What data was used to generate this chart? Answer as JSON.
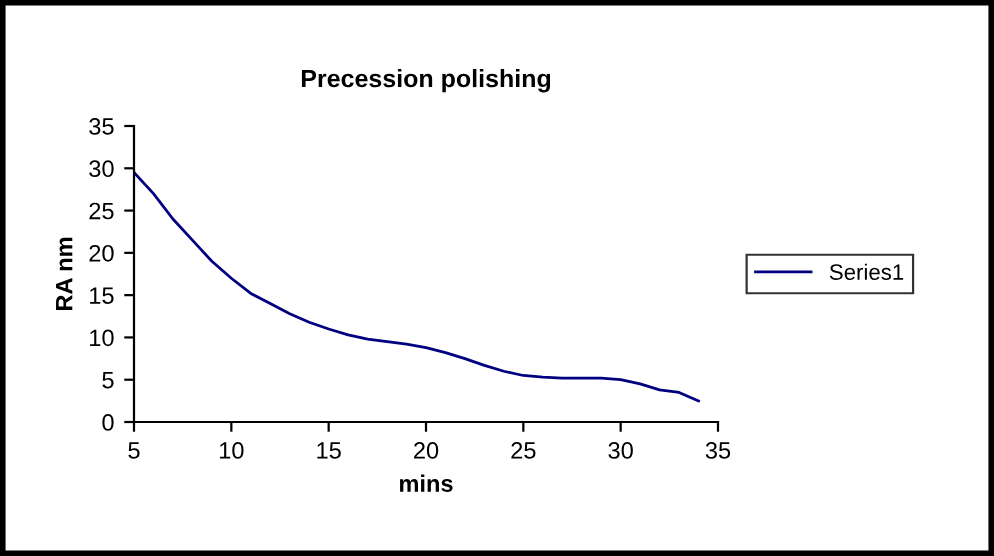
{
  "chart_data": {
    "type": "line",
    "title": "Precession polishing",
    "xlabel": "mins",
    "ylabel": "RA nm",
    "x": [
      5,
      6,
      7,
      8,
      9,
      10,
      11,
      12,
      13,
      14,
      15,
      16,
      17,
      18,
      19,
      20,
      21,
      22,
      23,
      24,
      25,
      26,
      27,
      28,
      29,
      30,
      31,
      32,
      33,
      34
    ],
    "series": [
      {
        "name": "Series1",
        "color": "#000080",
        "values": [
          29.5,
          27,
          24,
          21.5,
          19,
          17,
          15.2,
          14,
          12.8,
          11.8,
          11,
          10.3,
          9.8,
          9.5,
          9.2,
          8.8,
          8.2,
          7.5,
          6.7,
          6,
          5.5,
          5.3,
          5.2,
          5.2,
          5.2,
          5,
          4.5,
          3.8,
          3.5,
          2.5
        ]
      }
    ],
    "xlim": [
      5,
      35
    ],
    "xticks": [
      5,
      10,
      15,
      20,
      25,
      30,
      35
    ],
    "ylim": [
      0,
      35
    ],
    "yticks": [
      0,
      5,
      10,
      15,
      20,
      25,
      30,
      35
    ],
    "grid": false,
    "legend": "right",
    "marker": "none",
    "line_style": "solid"
  }
}
